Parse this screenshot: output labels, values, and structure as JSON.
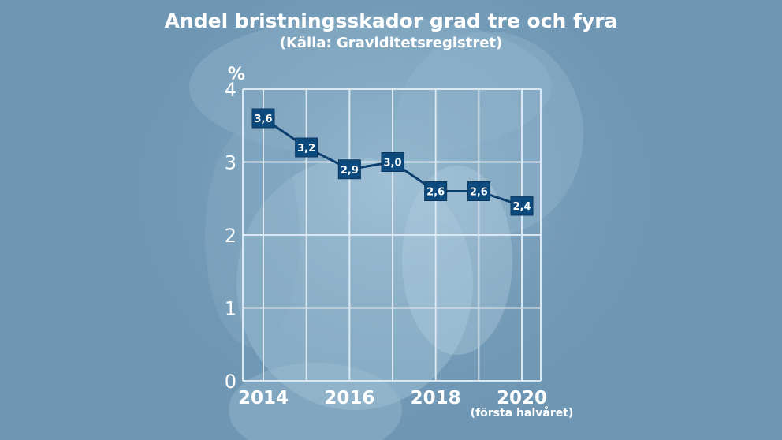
{
  "colors": {
    "background": "#6f97b3",
    "grid": "#dce8f1",
    "line": "#0c3e6e",
    "marker": "#0c4a7e",
    "text": "#ffffff"
  },
  "chart_data": {
    "type": "line",
    "title": "Andel bristningsskador grad tre och fyra",
    "subtitle": "(Källa: Graviditetsregistret)",
    "ylabel": "%",
    "xlabel": "",
    "ylim": [
      0,
      4
    ],
    "xlim": [
      2014,
      2020
    ],
    "yticks": [
      "0",
      "1",
      "2",
      "3",
      "4"
    ],
    "xticks": [
      "2014",
      "2016",
      "2018",
      "2020"
    ],
    "xtick_note": "(första halvåret)",
    "grid": true,
    "series": [
      {
        "x": [
          2014,
          2015,
          2016,
          2017,
          2018,
          2019,
          2020
        ],
        "values": [
          3.6,
          3.2,
          2.9,
          3.0,
          2.6,
          2.6,
          2.4
        ],
        "labels": [
          "3,6",
          "3,2",
          "2,9",
          "3,0",
          "2,6",
          "2,6",
          "2,4"
        ]
      }
    ]
  }
}
